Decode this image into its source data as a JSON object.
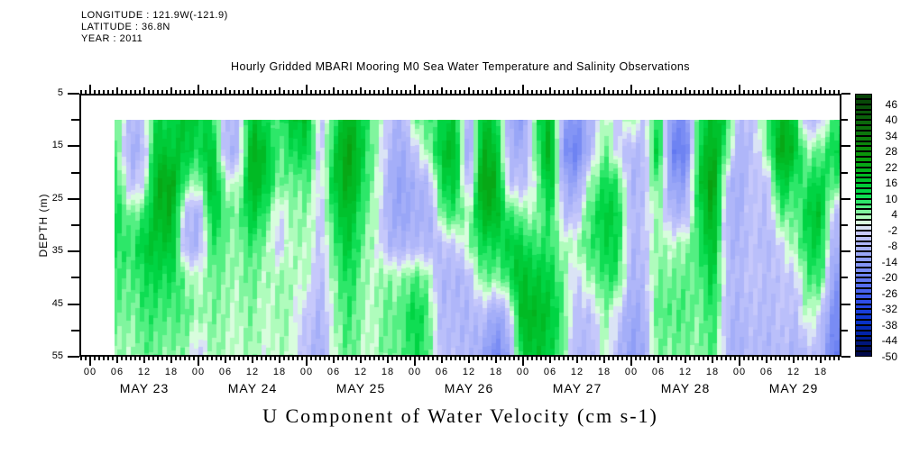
{
  "header": {
    "line1": "LONGITUDE : 121.9W(-121.9)",
    "line2": "LATITUDE : 36.8N",
    "line3": "YEAR : 2011"
  },
  "title": "Hourly Gridded MBARI Mooring M0 Sea Water Temperature and Salinity Observations",
  "bottom_label": "U Component of Water Velocity (cm s-1)",
  "axes": {
    "ylabel": "DEPTH (m)",
    "depth_major_ticks": [
      5,
      15,
      25,
      35,
      45,
      55
    ],
    "depth_minor_ticks": [
      10,
      20,
      30,
      40,
      50
    ],
    "hour_labels": [
      "00",
      "06",
      "12",
      "18"
    ],
    "days": [
      "MAY 23",
      "MAY 24",
      "MAY 25",
      "MAY 26",
      "MAY 27",
      "MAY 28",
      "MAY 29"
    ]
  },
  "colorbar": {
    "min": -50,
    "max": 50,
    "step": 2,
    "labels": [
      46,
      40,
      34,
      28,
      22,
      16,
      10,
      4,
      -2,
      -8,
      -14,
      -20,
      -26,
      -32,
      -38,
      -44,
      -50
    ],
    "stops": [
      [
        -50,
        "#000640"
      ],
      [
        -42,
        "#0020A0"
      ],
      [
        -36,
        "#0A34CE"
      ],
      [
        -30,
        "#2848E6"
      ],
      [
        -24,
        "#5068EE"
      ],
      [
        -18,
        "#7488F3"
      ],
      [
        -12,
        "#94A2F6"
      ],
      [
        -6,
        "#B4BAF9"
      ],
      [
        -2,
        "#CCCCFB"
      ],
      [
        0,
        "#E8FAEE"
      ],
      [
        2,
        "#C8FFCC"
      ],
      [
        4,
        "#96F8AC"
      ],
      [
        8,
        "#3CEC74"
      ],
      [
        12,
        "#00D848"
      ],
      [
        18,
        "#00BE28"
      ],
      [
        26,
        "#0B9A0B"
      ],
      [
        34,
        "#0C7A0C"
      ],
      [
        42,
        "#0A5C0A"
      ],
      [
        50,
        "#063E06"
      ]
    ]
  },
  "chart_data": {
    "type": "heatmap",
    "title": "Hourly Gridded MBARI Mooring M0 Sea Water Temperature and Salinity Observations",
    "value_label": "U Component of Water Velocity (cm s-1)",
    "units": "cm s-1",
    "value_range": [
      -50,
      50
    ],
    "x_axis": "Time, hours since MAY 23 2011 00:00, MAY 23 through MAY 29",
    "x_hours": [
      6,
      9,
      12,
      15,
      18,
      21,
      24,
      27,
      30,
      33,
      36,
      39,
      42,
      45,
      48,
      51,
      54,
      57,
      60,
      63,
      66,
      69,
      72,
      75,
      78,
      81,
      84,
      87,
      90,
      93,
      96,
      99,
      102,
      105,
      108,
      111,
      114,
      117,
      120,
      123,
      126,
      129,
      132,
      135,
      138,
      141,
      144,
      147,
      150,
      153,
      156,
      159,
      162,
      165
    ],
    "depths": [
      10,
      16,
      22,
      28,
      34,
      40,
      47,
      55
    ],
    "depth_range": [
      5,
      55
    ],
    "values": [
      [
        6,
        5,
        8,
        10,
        9,
        7,
        5,
        3
      ],
      [
        -6,
        -8,
        -4,
        6,
        10,
        8,
        6,
        4
      ],
      [
        -4,
        -6,
        -2,
        8,
        14,
        10,
        8,
        5
      ],
      [
        14,
        18,
        22,
        20,
        16,
        12,
        8,
        6
      ],
      [
        12,
        16,
        24,
        22,
        18,
        12,
        8,
        5
      ],
      [
        16,
        14,
        6,
        -6,
        -8,
        4,
        6,
        3
      ],
      [
        14,
        12,
        4,
        -8,
        -6,
        3,
        5,
        -3
      ],
      [
        10,
        16,
        18,
        14,
        8,
        5,
        4,
        3
      ],
      [
        -5,
        -7,
        3,
        8,
        6,
        5,
        4,
        3
      ],
      [
        -4,
        -6,
        2,
        6,
        5,
        4,
        3,
        2
      ],
      [
        16,
        22,
        20,
        14,
        8,
        5,
        4,
        3
      ],
      [
        12,
        18,
        16,
        10,
        6,
        4,
        3,
        2
      ],
      [
        6,
        5,
        4,
        -4,
        -5,
        3,
        3,
        2
      ],
      [
        16,
        12,
        6,
        5,
        4,
        3,
        2,
        2
      ],
      [
        18,
        14,
        8,
        5,
        4,
        3,
        -3,
        -5
      ],
      [
        -6,
        -5,
        -4,
        -5,
        -6,
        -7,
        -9,
        -11
      ],
      [
        10,
        14,
        16,
        12,
        8,
        6,
        4,
        3
      ],
      [
        20,
        24,
        22,
        18,
        14,
        10,
        8,
        6
      ],
      [
        14,
        16,
        14,
        10,
        8,
        6,
        5,
        4
      ],
      [
        6,
        5,
        4,
        3,
        2,
        2,
        2,
        2
      ],
      [
        -5,
        -6,
        -8,
        -9,
        -7,
        4,
        6,
        5
      ],
      [
        -7,
        -9,
        -11,
        -10,
        -6,
        5,
        8,
        7
      ],
      [
        4,
        -5,
        -9,
        -10,
        -7,
        6,
        12,
        10
      ],
      [
        8,
        5,
        -6,
        -8,
        -6,
        5,
        8,
        8
      ],
      [
        12,
        16,
        12,
        6,
        -5,
        -8,
        -7,
        -6
      ],
      [
        14,
        18,
        14,
        8,
        -4,
        -8,
        -7,
        -6
      ],
      [
        -8,
        -12,
        -6,
        4,
        5,
        -4,
        -6,
        -5
      ],
      [
        16,
        20,
        24,
        18,
        10,
        5,
        -6,
        -12
      ],
      [
        14,
        18,
        22,
        20,
        12,
        6,
        -10,
        -18
      ],
      [
        -10,
        -8,
        -5,
        8,
        14,
        10,
        -4,
        -10
      ],
      [
        -14,
        -10,
        -6,
        4,
        12,
        18,
        20,
        14
      ],
      [
        10,
        8,
        4,
        5,
        10,
        16,
        20,
        18
      ],
      [
        18,
        22,
        16,
        10,
        8,
        12,
        14,
        12
      ],
      [
        -10,
        -14,
        -8,
        -4,
        4,
        6,
        8,
        6
      ],
      [
        -16,
        -20,
        -12,
        -5,
        3,
        -4,
        -6,
        -8
      ],
      [
        -8,
        -6,
        4,
        8,
        8,
        4,
        -5,
        -7
      ],
      [
        5,
        8,
        12,
        16,
        14,
        10,
        6,
        4
      ],
      [
        -5,
        -4,
        8,
        12,
        10,
        8,
        -4,
        -8
      ],
      [
        6,
        -5,
        -7,
        -6,
        -6,
        -7,
        -9,
        -12
      ],
      [
        -5,
        -6,
        -5,
        -4,
        -5,
        -6,
        -8,
        -10
      ],
      [
        12,
        16,
        8,
        4,
        5,
        6,
        8,
        6
      ],
      [
        -14,
        -18,
        -12,
        -6,
        3,
        6,
        8,
        5
      ],
      [
        -18,
        -22,
        -14,
        -8,
        3,
        5,
        6,
        4
      ],
      [
        10,
        14,
        16,
        12,
        10,
        8,
        6,
        5
      ],
      [
        18,
        22,
        26,
        22,
        18,
        14,
        10,
        8
      ],
      [
        12,
        8,
        -4,
        -6,
        -5,
        -4,
        -5,
        -6
      ],
      [
        -6,
        -8,
        -9,
        -8,
        -7,
        -6,
        -7,
        -8
      ],
      [
        -5,
        -6,
        -5,
        -4,
        -5,
        -5,
        -6,
        -7
      ],
      [
        8,
        5,
        -4,
        -5,
        -5,
        -4,
        -5,
        -6
      ],
      [
        18,
        22,
        14,
        6,
        -4,
        -5,
        -5,
        -6
      ],
      [
        16,
        18,
        10,
        5,
        4,
        -4,
        -6,
        -8
      ],
      [
        -6,
        4,
        10,
        14,
        12,
        8,
        4,
        -5
      ],
      [
        -5,
        5,
        12,
        16,
        12,
        8,
        -4,
        -8
      ],
      [
        10,
        14,
        8,
        -4,
        -8,
        -12,
        -16,
        -20
      ]
    ]
  }
}
